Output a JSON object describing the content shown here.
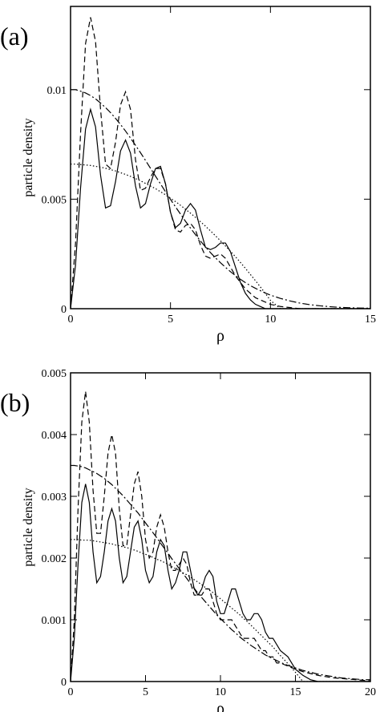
{
  "chart_data": [
    {
      "type": "line",
      "panel_label": "(a)",
      "ylabel": "particle density",
      "xlabel": "ρ",
      "xlim": [
        0,
        15
      ],
      "ylim": [
        0,
        0.0138
      ],
      "xticks": [
        0,
        5,
        10,
        15
      ],
      "yticks": [
        0,
        0.005,
        0.01
      ],
      "x": [
        0,
        0.25,
        0.5,
        0.75,
        1,
        1.25,
        1.5,
        1.75,
        2,
        2.25,
        2.5,
        2.75,
        3,
        3.25,
        3.5,
        3.75,
        4,
        4.25,
        4.5,
        4.75,
        5,
        5.25,
        5.5,
        5.75,
        6,
        6.25,
        6.5,
        6.75,
        7,
        7.25,
        7.5,
        7.75,
        8,
        8.25,
        8.5,
        8.75,
        9,
        9.25,
        9.5,
        9.75,
        10,
        10.5,
        11,
        11.5,
        12,
        12.5,
        13,
        13.5,
        14,
        14.5,
        15
      ],
      "series": [
        {
          "color": "#000000",
          "line_style": "solid",
          "values": [
            0,
            0.002,
            0.0055,
            0.0082,
            0.0091,
            0.0083,
            0.0061,
            0.0046,
            0.0047,
            0.0058,
            0.0072,
            0.0077,
            0.0071,
            0.0056,
            0.0046,
            0.0048,
            0.0057,
            0.0064,
            0.0065,
            0.0057,
            0.0044,
            0.0037,
            0.0039,
            0.0045,
            0.0048,
            0.0045,
            0.0036,
            0.0028,
            0.0027,
            0.0028,
            0.003,
            0.003,
            0.0026,
            0.0019,
            0.0012,
            0.0007,
            0.0004,
            0.0002,
            0.0001,
            0,
            0,
            0,
            0,
            0,
            0,
            0,
            0,
            0,
            0,
            0,
            0
          ]
        },
        {
          "color": "#000000",
          "line_style": "dashed",
          "values": [
            0,
            0.003,
            0.008,
            0.0121,
            0.0133,
            0.0122,
            0.0091,
            0.0066,
            0.0064,
            0.0076,
            0.0093,
            0.0099,
            0.0091,
            0.0068,
            0.0054,
            0.0055,
            0.006,
            0.0064,
            0.0064,
            0.0057,
            0.0044,
            0.0036,
            0.0035,
            0.0038,
            0.0039,
            0.0036,
            0.0029,
            0.0024,
            0.0023,
            0.0024,
            0.0025,
            0.0023,
            0.0019,
            0.0015,
            0.0012,
            0.0009,
            0.0007,
            0.0005,
            0.0004,
            0.0003,
            0.0002,
            0.0001,
            5e-05,
            0,
            0,
            0,
            0,
            0,
            0,
            0,
            0
          ]
        },
        {
          "color": "#000000",
          "line_style": "dashdot",
          "values": [
            0.01,
            0.01,
            0.00993,
            0.00985,
            0.00973,
            0.00958,
            0.00939,
            0.00918,
            0.00895,
            0.00869,
            0.00841,
            0.00811,
            0.00779,
            0.00746,
            0.00712,
            0.00677,
            0.00641,
            0.00605,
            0.0057,
            0.00534,
            0.00499,
            0.00465,
            0.00432,
            0.00399,
            0.00368,
            0.00338,
            0.00309,
            0.00282,
            0.00256,
            0.00232,
            0.0021,
            0.00189,
            0.00169,
            0.00151,
            0.00134,
            0.00119,
            0.00105,
            0.00093,
            0.00082,
            0.00071,
            0.00062,
            0.00047,
            0.00035,
            0.00025,
            0.00018,
            0.00013,
            9e-05,
            6e-05,
            4e-05,
            3e-05,
            2e-05
          ]
        },
        {
          "color": "#000000",
          "line_style": "dotted",
          "values": [
            0.0066,
            0.0066,
            0.00658,
            0.00656,
            0.00654,
            0.0065,
            0.00646,
            0.00641,
            0.00635,
            0.00629,
            0.00621,
            0.00613,
            0.00604,
            0.00594,
            0.00584,
            0.00572,
            0.0056,
            0.00548,
            0.00534,
            0.0052,
            0.00504,
            0.00489,
            0.00472,
            0.00454,
            0.00436,
            0.00417,
            0.00397,
            0.00377,
            0.00355,
            0.00333,
            0.0031,
            0.00286,
            0.00262,
            0.00237,
            0.00211,
            0.00184,
            0.00156,
            0.00128,
            0.00099,
            0.00069,
            0.00038,
            0,
            0,
            0,
            0,
            0,
            0,
            0,
            0,
            0,
            0
          ]
        }
      ]
    },
    {
      "type": "line",
      "panel_label": "(b)",
      "ylabel": "particle density",
      "xlabel": "ρ",
      "xlim": [
        0,
        20
      ],
      "ylim": [
        0,
        0.005
      ],
      "xticks": [
        0,
        5,
        10,
        15,
        20
      ],
      "yticks": [
        0,
        0.001,
        0.002,
        0.003,
        0.004,
        0.005
      ],
      "x": [
        0,
        0.25,
        0.5,
        0.75,
        1,
        1.25,
        1.5,
        1.75,
        2,
        2.25,
        2.5,
        2.75,
        3,
        3.25,
        3.5,
        3.75,
        4,
        4.25,
        4.5,
        4.75,
        5,
        5.25,
        5.5,
        5.75,
        6,
        6.25,
        6.5,
        6.75,
        7,
        7.25,
        7.5,
        7.75,
        8,
        8.25,
        8.5,
        8.75,
        9,
        9.25,
        9.5,
        9.75,
        10,
        10.25,
        10.5,
        10.75,
        11,
        11.25,
        11.5,
        11.75,
        12,
        12.25,
        12.5,
        12.75,
        13,
        13.25,
        13.5,
        13.75,
        14,
        14.5,
        15,
        15.5,
        16,
        16.5,
        17,
        17.5,
        18,
        18.5,
        19,
        19.5,
        20
      ],
      "series": [
        {
          "color": "#000000",
          "line_style": "solid",
          "values": [
            0,
            0.0007,
            0.0019,
            0.0029,
            0.0032,
            0.0029,
            0.0021,
            0.0016,
            0.0017,
            0.0021,
            0.0026,
            0.0028,
            0.0026,
            0.002,
            0.0016,
            0.0017,
            0.0021,
            0.0025,
            0.0026,
            0.0023,
            0.0018,
            0.0016,
            0.0017,
            0.0021,
            0.0023,
            0.0022,
            0.0018,
            0.0015,
            0.0016,
            0.0018,
            0.0021,
            0.0021,
            0.0018,
            0.0015,
            0.0014,
            0.0015,
            0.0017,
            0.0018,
            0.0017,
            0.0013,
            0.0011,
            0.0011,
            0.0013,
            0.0015,
            0.0015,
            0.0013,
            0.0011,
            0.001,
            0.001,
            0.0011,
            0.0011,
            0.001,
            0.0008,
            0.0007,
            0.0007,
            0.0006,
            0.0005,
            0.0004,
            0.0002,
            0.0001,
            3e-05,
            0,
            0,
            0,
            0,
            0,
            0,
            0,
            0
          ]
        },
        {
          "color": "#000000",
          "line_style": "dashed",
          "values": [
            0,
            0.001,
            0.0028,
            0.0042,
            0.0047,
            0.0042,
            0.0031,
            0.0024,
            0.0024,
            0.003,
            0.0037,
            0.004,
            0.0037,
            0.0028,
            0.0022,
            0.0022,
            0.0027,
            0.0032,
            0.0034,
            0.003,
            0.0023,
            0.002,
            0.0021,
            0.0025,
            0.0027,
            0.0025,
            0.0021,
            0.0018,
            0.0018,
            0.0019,
            0.002,
            0.0019,
            0.0016,
            0.0014,
            0.0014,
            0.0014,
            0.0015,
            0.0015,
            0.0013,
            0.0011,
            0.001,
            0.001,
            0.001,
            0.001,
            0.0009,
            0.0008,
            0.0007,
            0.0007,
            0.0007,
            0.0007,
            0.0006,
            0.0005,
            0.0005,
            0.0004,
            0.0004,
            0.0003,
            0.0003,
            0.00025,
            0.0002,
            0.00016,
            0.00013,
            0.0001,
            8e-05,
            6e-05,
            5e-05,
            4e-05,
            3e-05,
            2e-05,
            1e-05
          ]
        },
        {
          "color": "#000000",
          "line_style": "dashdot",
          "values": [
            0.0035,
            0.0035,
            0.00349,
            0.00348,
            0.00346,
            0.00343,
            0.0034,
            0.00337,
            0.00333,
            0.00329,
            0.00324,
            0.00319,
            0.00313,
            0.00307,
            0.00301,
            0.00294,
            0.00287,
            0.0028,
            0.00273,
            0.00265,
            0.00257,
            0.00249,
            0.00241,
            0.00233,
            0.00224,
            0.00216,
            0.00208,
            0.00199,
            0.00191,
            0.00183,
            0.00175,
            0.00167,
            0.00159,
            0.00151,
            0.00143,
            0.00136,
            0.00129,
            0.00122,
            0.00115,
            0.00108,
            0.00102,
            0.00096,
            0.0009,
            0.00084,
            0.00079,
            0.00073,
            0.00068,
            0.00064,
            0.00059,
            0.00055,
            0.00051,
            0.00047,
            0.00043,
            0.0004,
            0.00037,
            0.00034,
            0.00031,
            0.00026,
            0.00022,
            0.00018,
            0.00015,
            0.00012,
            0.0001,
            8e-05,
            6e-05,
            5e-05,
            4e-05,
            3e-05,
            3e-05
          ]
        },
        {
          "color": "#000000",
          "line_style": "dotted",
          "values": [
            0.0023,
            0.0023,
            0.0023,
            0.00229,
            0.00229,
            0.00229,
            0.00228,
            0.00227,
            0.00226,
            0.00225,
            0.00224,
            0.00223,
            0.00221,
            0.0022,
            0.00218,
            0.00217,
            0.00215,
            0.00213,
            0.00211,
            0.00208,
            0.00206,
            0.00204,
            0.00201,
            0.00198,
            0.00196,
            0.00193,
            0.0019,
            0.00186,
            0.00183,
            0.0018,
            0.00176,
            0.00173,
            0.00169,
            0.00165,
            0.00161,
            0.00157,
            0.00152,
            0.00148,
            0.00144,
            0.00139,
            0.00134,
            0.00129,
            0.00124,
            0.00119,
            0.00114,
            0.00109,
            0.00103,
            0.00098,
            0.00092,
            0.00086,
            0.0008,
            0.00074,
            0.00068,
            0.00062,
            0.00056,
            0.00049,
            0.00042,
            0.00029,
            0.00015,
            0,
            0,
            0,
            0,
            0,
            0,
            0,
            0,
            0,
            0
          ]
        }
      ]
    }
  ]
}
